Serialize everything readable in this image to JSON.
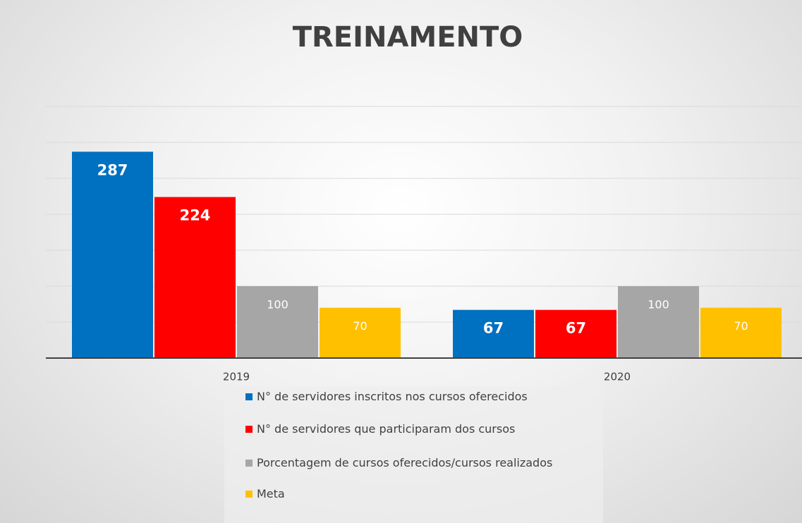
{
  "chart_data": {
    "type": "bar",
    "title": "TREINAMENTO",
    "categories": [
      "2019",
      "2020"
    ],
    "series": [
      {
        "name": "N° de servidores inscritos nos cursos oferecidos",
        "color": "#0070c0",
        "values": [
          287,
          67
        ]
      },
      {
        "name": "N° de servidores que participaram dos cursos",
        "color": "#ff0000",
        "values": [
          224,
          67
        ]
      },
      {
        "name": "Porcentagem de cursos oferecidos/cursos realizados",
        "color": "#a6a6a6",
        "values": [
          100,
          100
        ]
      },
      {
        "name": "Meta",
        "color": "#ffc000",
        "values": [
          70,
          70
        ]
      }
    ],
    "ylim": [
      0,
      350
    ],
    "yticks": [
      0,
      50,
      100,
      150,
      200,
      250,
      300,
      350
    ],
    "grid": true
  }
}
